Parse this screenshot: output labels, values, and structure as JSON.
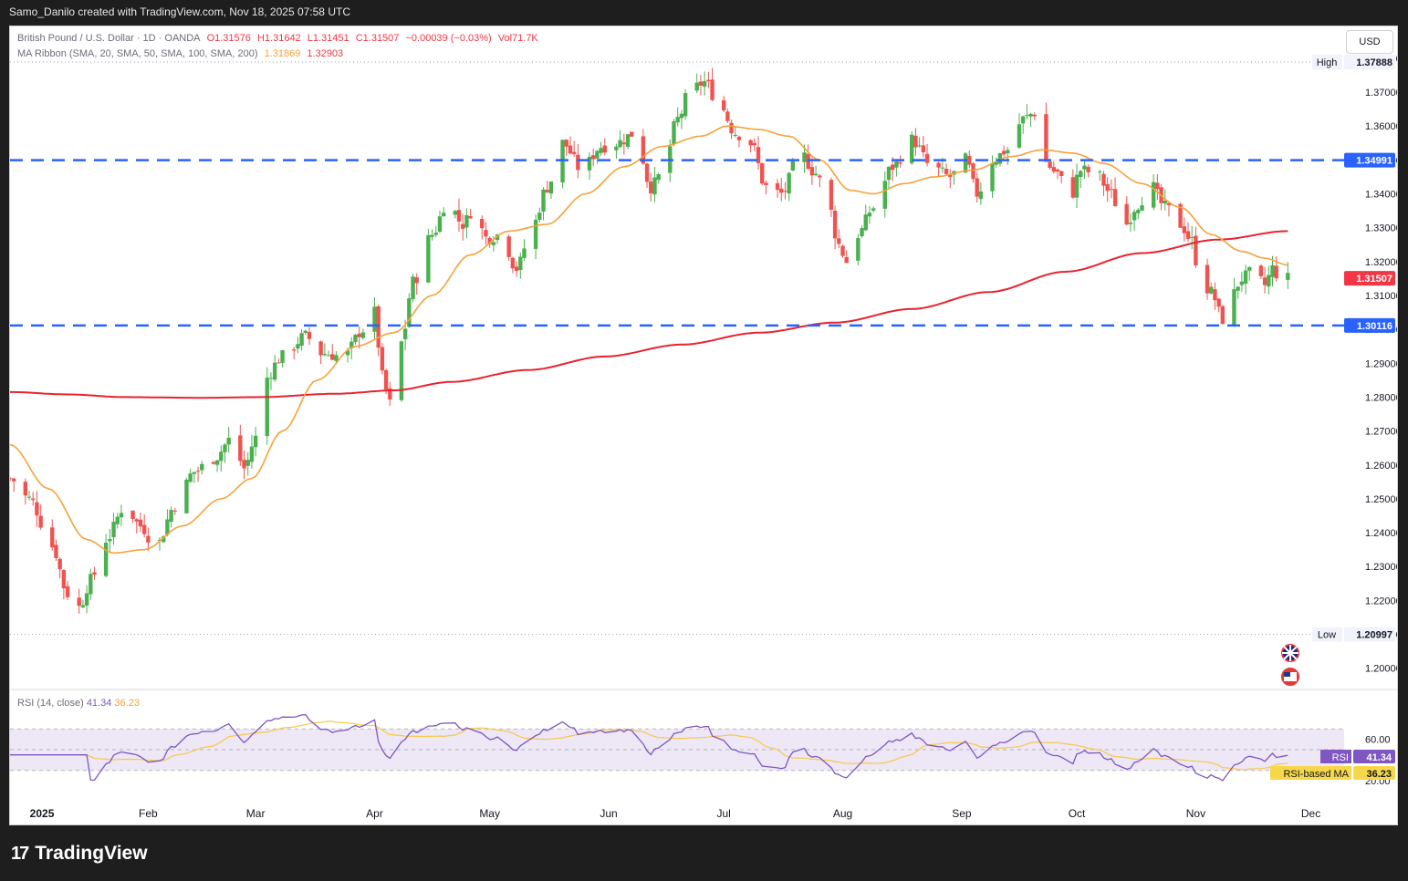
{
  "header": {
    "text": "Samo_Danilo created with TradingView.com, Nov 18, 2025 07:58 UTC"
  },
  "legend": {
    "symbol": "British Pound / U.S. Dollar · 1D · OANDA",
    "open": "O1.31576",
    "high": "H1.31642",
    "low": "L1.31451",
    "close": "C1.31507",
    "change": "−0.00039 (−0.03%)",
    "volume": "Vol71.7K",
    "ma_label": "MA Ribbon (SMA, 20, SMA, 50, SMA, 100, SMA, 200)",
    "ma_fast": "1.31869",
    "ma_slow": "1.32903"
  },
  "currency_button": "USD",
  "rsi_legend": {
    "label": "RSI (14, close)",
    "rsi": "41.34",
    "ma": "36.23"
  },
  "brand": {
    "name": "TradingView",
    "logo_glyph": "17"
  },
  "colors": {
    "up": "#4caf50",
    "down": "#ef5350",
    "ma20": "#f7a13a",
    "ma200": "#e8232e",
    "level": "#2962ff",
    "rsi": "#7e57c2",
    "rsi_bg": "#ede7f6"
  },
  "chart_data": {
    "type": "candlestick",
    "symbol": "GBP/USD",
    "ylim": [
      1.194,
      1.384
    ],
    "y_ticks": [
      "1.20000",
      "1.21000",
      "1.22000",
      "1.23000",
      "1.24000",
      "1.25000",
      "1.26000",
      "1.27000",
      "1.28000",
      "1.29000",
      "1.30000",
      "1.31000",
      "1.32000",
      "1.33000",
      "1.34000",
      "1.35000",
      "1.36000",
      "1.37000",
      "1.38000"
    ],
    "x_ticks": [
      {
        "label": "2025",
        "day": 0
      },
      {
        "label": "Feb",
        "day": 31
      },
      {
        "label": "Mar",
        "day": 59
      },
      {
        "label": "Apr",
        "day": 90
      },
      {
        "label": "May",
        "day": 120
      },
      {
        "label": "Jun",
        "day": 151
      },
      {
        "label": "Jul",
        "day": 181
      },
      {
        "label": "Aug",
        "day": 212
      },
      {
        "label": "Sep",
        "day": 243
      },
      {
        "label": "Oct",
        "day": 273
      },
      {
        "label": "Nov",
        "day": 304
      },
      {
        "label": "Dec",
        "day": 334
      }
    ],
    "x_start_day": -5,
    "x_end_day": 341,
    "levels": {
      "high": {
        "label": "High",
        "value": "1.37888"
      },
      "low": {
        "label": "Low",
        "value": "1.20997"
      },
      "resistance": {
        "value": "1.34991"
      },
      "support": {
        "value": "1.30116"
      },
      "last": {
        "value": "1.31507"
      }
    },
    "anchors": [
      {
        "day": -5,
        "close": 1.256
      },
      {
        "day": 0,
        "close": 1.25
      },
      {
        "day": 6,
        "close": 1.236
      },
      {
        "day": 10,
        "close": 1.222
      },
      {
        "day": 13,
        "close": 1.218
      },
      {
        "day": 16,
        "close": 1.226
      },
      {
        "day": 20,
        "close": 1.238
      },
      {
        "day": 25,
        "close": 1.248
      },
      {
        "day": 29,
        "close": 1.242
      },
      {
        "day": 33,
        "close": 1.236
      },
      {
        "day": 38,
        "close": 1.248
      },
      {
        "day": 43,
        "close": 1.258
      },
      {
        "day": 48,
        "close": 1.262
      },
      {
        "day": 53,
        "close": 1.268
      },
      {
        "day": 56,
        "close": 1.259
      },
      {
        "day": 59,
        "close": 1.268
      },
      {
        "day": 61,
        "close": 1.285
      },
      {
        "day": 66,
        "close": 1.292
      },
      {
        "day": 72,
        "close": 1.298
      },
      {
        "day": 76,
        "close": 1.293
      },
      {
        "day": 82,
        "close": 1.292
      },
      {
        "day": 87,
        "close": 1.3
      },
      {
        "day": 90,
        "close": 1.305
      },
      {
        "day": 92,
        "close": 1.286
      },
      {
        "day": 94,
        "close": 1.278
      },
      {
        "day": 97,
        "close": 1.296
      },
      {
        "day": 100,
        "close": 1.314
      },
      {
        "day": 105,
        "close": 1.328
      },
      {
        "day": 109,
        "close": 1.338
      },
      {
        "day": 113,
        "close": 1.331
      },
      {
        "day": 116,
        "close": 1.336
      },
      {
        "day": 119,
        "close": 1.327
      },
      {
        "day": 123,
        "close": 1.328
      },
      {
        "day": 127,
        "close": 1.318
      },
      {
        "day": 131,
        "close": 1.33
      },
      {
        "day": 135,
        "close": 1.342
      },
      {
        "day": 139,
        "close": 1.355
      },
      {
        "day": 144,
        "close": 1.347
      },
      {
        "day": 149,
        "close": 1.354
      },
      {
        "day": 153,
        "close": 1.355
      },
      {
        "day": 158,
        "close": 1.358
      },
      {
        "day": 162,
        "close": 1.342
      },
      {
        "day": 165,
        "close": 1.346
      },
      {
        "day": 169,
        "close": 1.362
      },
      {
        "day": 172,
        "close": 1.37
      },
      {
        "day": 176,
        "close": 1.373
      },
      {
        "day": 180,
        "close": 1.366
      },
      {
        "day": 184,
        "close": 1.358
      },
      {
        "day": 188,
        "close": 1.355
      },
      {
        "day": 192,
        "close": 1.342
      },
      {
        "day": 196,
        "close": 1.34
      },
      {
        "day": 201,
        "close": 1.352
      },
      {
        "day": 205,
        "close": 1.346
      },
      {
        "day": 208,
        "close": 1.338
      },
      {
        "day": 211,
        "close": 1.325
      },
      {
        "day": 213,
        "close": 1.32
      },
      {
        "day": 216,
        "close": 1.328
      },
      {
        "day": 220,
        "close": 1.336
      },
      {
        "day": 225,
        "close": 1.348
      },
      {
        "day": 230,
        "close": 1.356
      },
      {
        "day": 235,
        "close": 1.348
      },
      {
        "day": 240,
        "close": 1.345
      },
      {
        "day": 244,
        "close": 1.35
      },
      {
        "day": 247,
        "close": 1.34
      },
      {
        "day": 251,
        "close": 1.35
      },
      {
        "day": 255,
        "close": 1.353
      },
      {
        "day": 259,
        "close": 1.362
      },
      {
        "day": 262,
        "close": 1.364
      },
      {
        "day": 264,
        "close": 1.35
      },
      {
        "day": 268,
        "close": 1.346
      },
      {
        "day": 271,
        "close": 1.338
      },
      {
        "day": 274,
        "close": 1.347
      },
      {
        "day": 278,
        "close": 1.346
      },
      {
        "day": 282,
        "close": 1.34
      },
      {
        "day": 285,
        "close": 1.33
      },
      {
        "day": 289,
        "close": 1.337
      },
      {
        "day": 292,
        "close": 1.343
      },
      {
        "day": 296,
        "close": 1.336
      },
      {
        "day": 300,
        "close": 1.331
      },
      {
        "day": 303,
        "close": 1.326
      },
      {
        "day": 305,
        "close": 1.315
      },
      {
        "day": 308,
        "close": 1.311
      },
      {
        "day": 311,
        "close": 1.303
      },
      {
        "day": 313,
        "close": 1.309
      },
      {
        "day": 316,
        "close": 1.315
      },
      {
        "day": 319,
        "close": 1.317
      },
      {
        "day": 322,
        "close": 1.313
      },
      {
        "day": 324,
        "close": 1.318
      },
      {
        "day": 326,
        "close": 1.315
      },
      {
        "day": 328,
        "close": 1.315
      }
    ],
    "ma20_anchors": [
      {
        "day": -5,
        "v": 1.266
      },
      {
        "day": 5,
        "v": 1.253
      },
      {
        "day": 15,
        "v": 1.238
      },
      {
        "day": 22,
        "v": 1.234
      },
      {
        "day": 30,
        "v": 1.235
      },
      {
        "day": 40,
        "v": 1.242
      },
      {
        "day": 50,
        "v": 1.25
      },
      {
        "day": 58,
        "v": 1.256
      },
      {
        "day": 66,
        "v": 1.27
      },
      {
        "day": 75,
        "v": 1.285
      },
      {
        "day": 85,
        "v": 1.295
      },
      {
        "day": 95,
        "v": 1.299
      },
      {
        "day": 105,
        "v": 1.31
      },
      {
        "day": 115,
        "v": 1.322
      },
      {
        "day": 125,
        "v": 1.329
      },
      {
        "day": 135,
        "v": 1.331
      },
      {
        "day": 145,
        "v": 1.34
      },
      {
        "day": 155,
        "v": 1.348
      },
      {
        "day": 165,
        "v": 1.354
      },
      {
        "day": 175,
        "v": 1.357
      },
      {
        "day": 182,
        "v": 1.36
      },
      {
        "day": 190,
        "v": 1.359
      },
      {
        "day": 198,
        "v": 1.357
      },
      {
        "day": 206,
        "v": 1.35
      },
      {
        "day": 214,
        "v": 1.341
      },
      {
        "day": 220,
        "v": 1.34
      },
      {
        "day": 228,
        "v": 1.343
      },
      {
        "day": 236,
        "v": 1.345
      },
      {
        "day": 246,
        "v": 1.347
      },
      {
        "day": 256,
        "v": 1.351
      },
      {
        "day": 264,
        "v": 1.353
      },
      {
        "day": 272,
        "v": 1.352
      },
      {
        "day": 280,
        "v": 1.349
      },
      {
        "day": 290,
        "v": 1.343
      },
      {
        "day": 300,
        "v": 1.336
      },
      {
        "day": 308,
        "v": 1.328
      },
      {
        "day": 316,
        "v": 1.323
      },
      {
        "day": 322,
        "v": 1.321
      },
      {
        "day": 328,
        "v": 1.319
      }
    ],
    "ma200_anchors": [
      {
        "day": -5,
        "v": 1.2815
      },
      {
        "day": 10,
        "v": 1.2808
      },
      {
        "day": 25,
        "v": 1.28
      },
      {
        "day": 45,
        "v": 1.2798
      },
      {
        "day": 60,
        "v": 1.28
      },
      {
        "day": 80,
        "v": 1.281
      },
      {
        "day": 95,
        "v": 1.282
      },
      {
        "day": 110,
        "v": 1.2845
      },
      {
        "day": 130,
        "v": 1.288
      },
      {
        "day": 150,
        "v": 1.292
      },
      {
        "day": 170,
        "v": 1.2955
      },
      {
        "day": 190,
        "v": 1.299
      },
      {
        "day": 210,
        "v": 1.302
      },
      {
        "day": 230,
        "v": 1.306
      },
      {
        "day": 250,
        "v": 1.311
      },
      {
        "day": 270,
        "v": 1.317
      },
      {
        "day": 290,
        "v": 1.3225
      },
      {
        "day": 310,
        "v": 1.3265
      },
      {
        "day": 328,
        "v": 1.329
      }
    ],
    "rsi": {
      "ylim": [
        0,
        100
      ],
      "bands": [
        30,
        70
      ],
      "y_ticks": [
        "20.00",
        "60.00"
      ],
      "last_rsi": "41.34",
      "last_ma": "36.23",
      "ma_label": "RSI-based MA",
      "label": "RSI"
    }
  }
}
